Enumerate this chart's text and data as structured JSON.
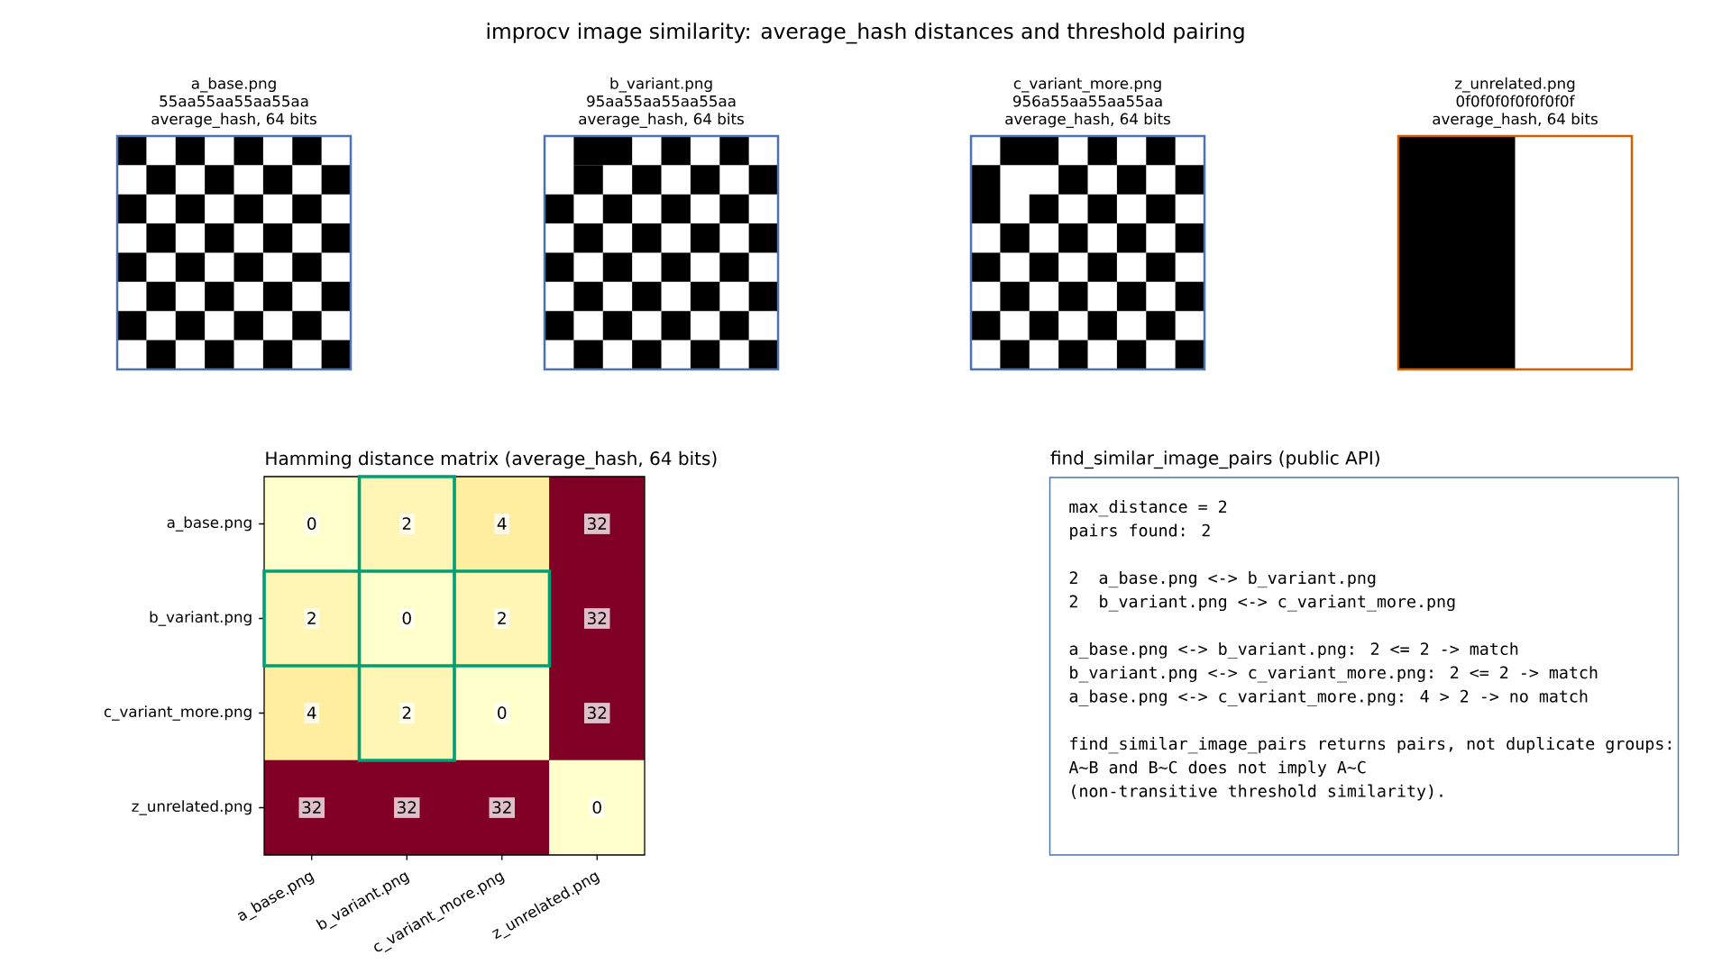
{
  "chart_data": [
    {
      "type": "other",
      "title": "improcv image similarity: average_hash distances and threshold pairing"
    },
    {
      "type": "other",
      "title": "a_base.png",
      "subtitle": "55aa55aa55aa55aa",
      "annotations": [
        "average_hash, 64 bits"
      ]
    },
    {
      "type": "other",
      "title": "b_variant.png",
      "subtitle": "95aa55aa55aa55aa",
      "annotations": [
        "average_hash, 64 bits"
      ]
    },
    {
      "type": "other",
      "title": "c_variant_more.png",
      "subtitle": "956a55aa55aa55aa",
      "annotations": [
        "average_hash, 64 bits"
      ]
    },
    {
      "type": "other",
      "title": "z_unrelated.png",
      "subtitle": "0f0f0f0f0f0f0f0f",
      "annotations": [
        "average_hash, 64 bits"
      ]
    },
    {
      "type": "heatmap",
      "title": "Hamming distance matrix (average_hash, 64 bits)",
      "categories": [
        "a_base.png",
        "b_variant.png",
        "c_variant_more.png",
        "z_unrelated.png"
      ],
      "y_categories": [
        "a_base.png",
        "b_variant.png",
        "c_variant_more.png",
        "z_unrelated.png"
      ],
      "cells": [
        [
          0,
          2,
          4,
          32
        ],
        [
          2,
          0,
          2,
          32
        ],
        [
          4,
          2,
          0,
          32
        ],
        [
          32,
          32,
          32,
          0
        ]
      ],
      "data_labels": true
    },
    {
      "type": "other",
      "title": "find_similar_image_pairs (public API)",
      "annotations": [
        "max_distance = 2",
        "pairs found: 2",
        "2  a_base.png <-> b_variant.png",
        "2  b_variant.png <-> c_variant_more.png",
        "a_base.png <-> b_variant.png: 2 <= 2 -> match",
        "b_variant.png <-> c_variant_more.png: 2 <= 2 -> match",
        "a_base.png <-> c_variant_more.png: 4 > 2 -> no match",
        "find_similar_image_pairs returns pairs, not duplicate groups:",
        "A~B and B~C does not imply A~C",
        "(non-transitive threshold similarity)."
      ]
    }
  ]
}
